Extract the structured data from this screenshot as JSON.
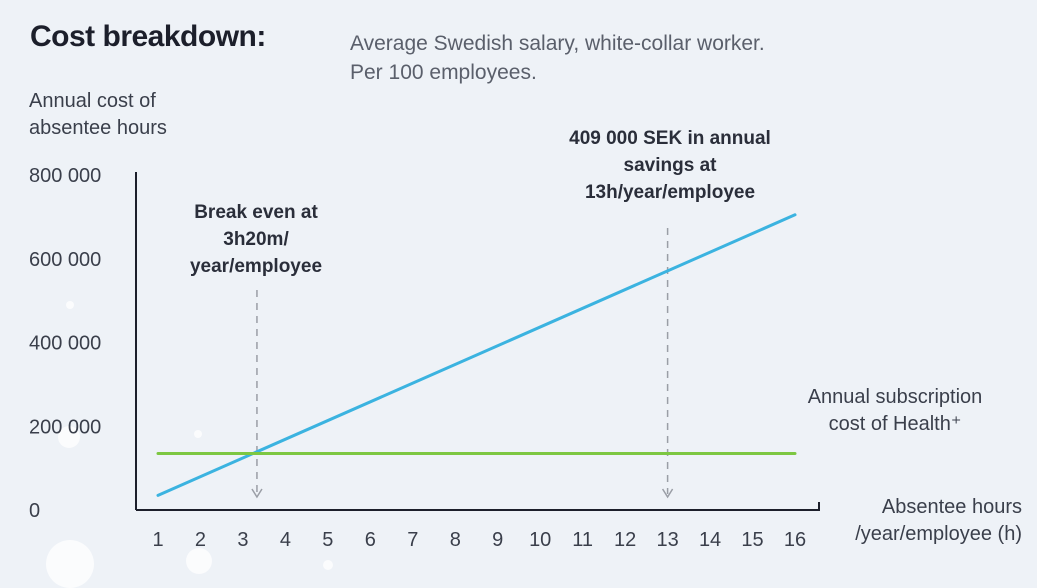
{
  "title": "Cost breakdown:",
  "subtitle": "Average Swedish salary, white-collar worker. Per 100 employees.",
  "colors": {
    "background": "#eef2f7",
    "savings_line": "#3bb3e0",
    "subscription_line": "#7dc742",
    "axis": "#1c1f2b",
    "guide": "#9a9ea6"
  },
  "chart_data": {
    "type": "line",
    "ylabel": "Annual cost of absentee hours",
    "xlabel": "Absentee hours /year/employee (h)",
    "xlim": [
      1,
      16
    ],
    "ylim": [
      0,
      800000
    ],
    "x_ticks": [
      "1",
      "2",
      "3",
      "4",
      "5",
      "6",
      "7",
      "8",
      "9",
      "10",
      "11",
      "12",
      "13",
      "14",
      "15",
      "16"
    ],
    "y_ticks": [
      {
        "value": 0,
        "label": "0"
      },
      {
        "value": 200000,
        "label": "200 000"
      },
      {
        "value": 400000,
        "label": "400 000"
      },
      {
        "value": 600000,
        "label": "600 000"
      },
      {
        "value": 800000,
        "label": "800 000"
      }
    ],
    "grid": false,
    "series": [
      {
        "x": [
          1,
          16
        ],
        "y": [
          35000,
          705000
        ]
      },
      {
        "name": "Annual subscription cost of Health⁺",
        "x": [
          1,
          16
        ],
        "y": [
          135000,
          135000
        ]
      }
    ],
    "annotations": [
      {
        "text": "Break even at 3h20m/ year/employee",
        "x": 3.33
      },
      {
        "text": "409 000 SEK in annual savings at 13h/year/employee",
        "x": 13
      }
    ]
  }
}
